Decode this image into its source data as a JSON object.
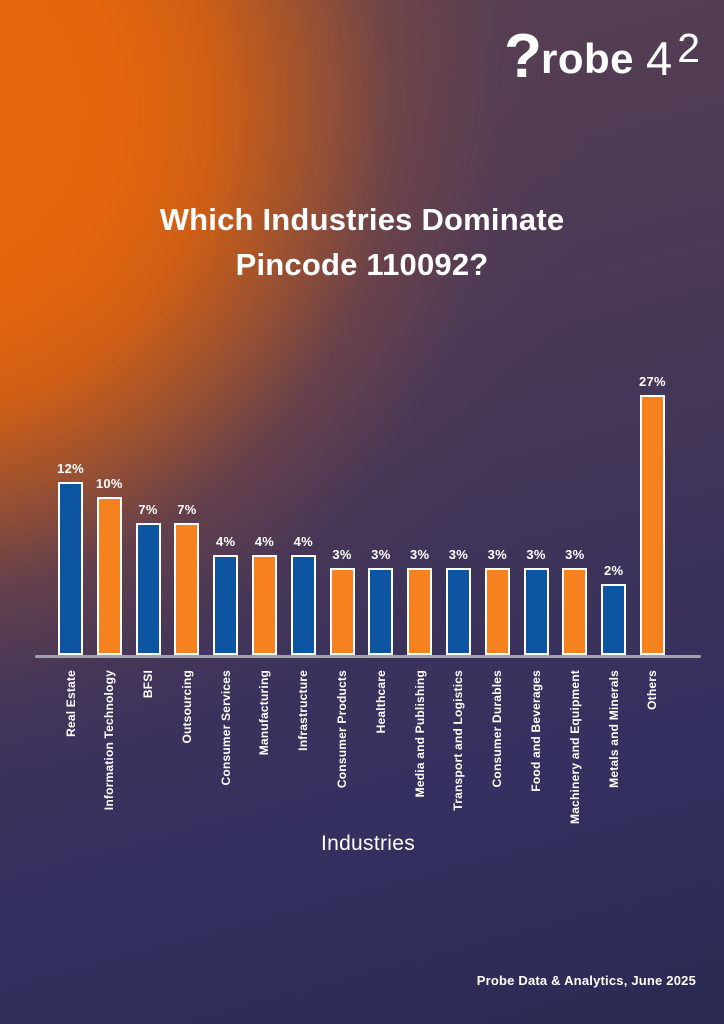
{
  "logo": {
    "question_glyph": "?",
    "word": "robe",
    "num4": "4",
    "num2": "2"
  },
  "title": {
    "line1": "Which Industries Dominate",
    "line2": "Pincode 110092?"
  },
  "footer": "Probe Data & Analytics, June 2025",
  "colors": {
    "bar_blue": "#0D55A0",
    "bar_orange": "#F5821F",
    "bar_border": "#FFFFFF",
    "axis_line": "#A1A0AC",
    "text": "#FFFFFF",
    "bg_orange": "#E6650D",
    "bg_navy": "#2B2A52"
  },
  "chart_data": {
    "type": "bar",
    "title": "Which Industries Dominate Pincode 110092?",
    "xlabel": "Industries",
    "ylabel": "",
    "grid": false,
    "value_axis_visible": false,
    "legend": "none",
    "categories": [
      "Real Estate",
      "Information Technology",
      "BFSI",
      "Outsourcing",
      "Consumer Services",
      "Manufacturing",
      "Infrastructure",
      "Consumer Products",
      "Healthcare",
      "Media and Publishing",
      "Transport and Logistics",
      "Consumer Durables",
      "Food and Beverages",
      "Machinery and Equipment",
      "Metals and Minerals",
      "Others"
    ],
    "values": [
      12,
      10,
      7,
      7,
      4,
      4,
      4,
      3,
      3,
      3,
      3,
      3,
      3,
      3,
      2,
      27
    ],
    "value_labels": [
      "12%",
      "10%",
      "7%",
      "7%",
      "4%",
      "4%",
      "4%",
      "3%",
      "3%",
      "3%",
      "3%",
      "3%",
      "3%",
      "3%",
      "2%",
      "27%"
    ],
    "bar_color_pattern": [
      "#0D55A0",
      "#F5821F"
    ],
    "bar_color_pattern_note": "colors alternate blue/orange starting with blue",
    "ylim": [
      0,
      30
    ]
  }
}
